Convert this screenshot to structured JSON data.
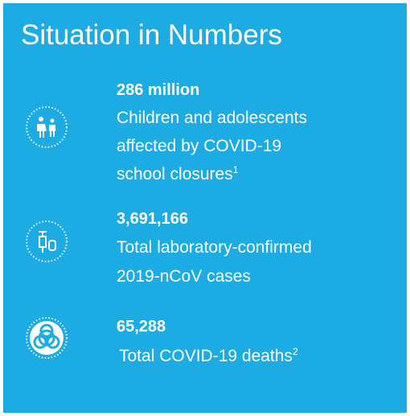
{
  "title": "Situation in Numbers",
  "items": [
    {
      "value": "286 million",
      "lines": [
        "Children and adolescents",
        "affected by COVID-19",
        "school closures"
      ],
      "note": "1"
    },
    {
      "value": "3,691,166",
      "lines": [
        "Total laboratory-confirmed",
        "2019-nCoV cases"
      ]
    },
    {
      "value": "65,288",
      "lines": [
        "Total COVID-19 deaths"
      ],
      "note": "2"
    }
  ]
}
